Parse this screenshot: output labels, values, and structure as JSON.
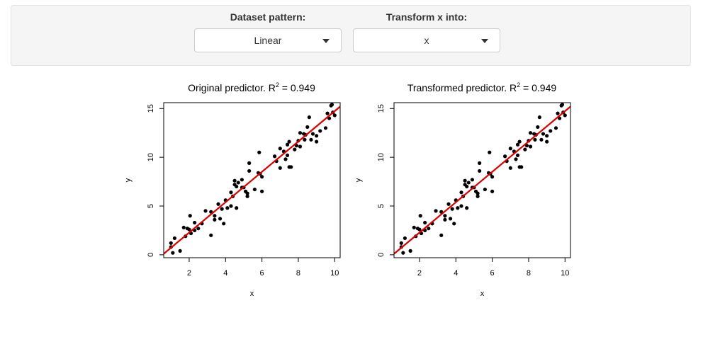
{
  "controls": {
    "dataset": {
      "label": "Dataset pattern:",
      "value": "Linear"
    },
    "transform": {
      "label": "Transform x into:",
      "value": "x"
    }
  },
  "plots": [
    {
      "title_prefix": "Original predictor. R",
      "title_sup": "2",
      "title_suffix": " = 0.949"
    },
    {
      "title_prefix": "Transformed predictor. R",
      "title_sup": "2",
      "title_suffix": " = 0.949"
    }
  ],
  "chart_data": [
    {
      "type": "scatter",
      "title": "Original predictor. R² = 0.949",
      "xlabel": "x",
      "ylabel": "y",
      "xlim": [
        0.6,
        10.3
      ],
      "ylim": [
        -0.3,
        15.6
      ],
      "xticks": [
        2,
        4,
        6,
        8,
        10
      ],
      "yticks": [
        0,
        5,
        10,
        15
      ],
      "grid": false,
      "fit_line": {
        "x": [
          0.6,
          10.3
        ],
        "y": [
          0.1,
          15.2
        ],
        "color": "#dd0000"
      },
      "points": [
        [
          1.0,
          1.2
        ],
        [
          1.0,
          0.8
        ],
        [
          1.1,
          0.2
        ],
        [
          1.2,
          1.7
        ],
        [
          1.5,
          0.4
        ],
        [
          1.7,
          2.8
        ],
        [
          1.8,
          1.9
        ],
        [
          1.9,
          2.7
        ],
        [
          2.0,
          2.6
        ],
        [
          2.05,
          4.0
        ],
        [
          2.1,
          2.2
        ],
        [
          2.3,
          2.5
        ],
        [
          2.3,
          3.3
        ],
        [
          2.5,
          2.7
        ],
        [
          2.7,
          3.2
        ],
        [
          2.9,
          4.5
        ],
        [
          3.2,
          4.4
        ],
        [
          3.2,
          2.0
        ],
        [
          3.4,
          4.0
        ],
        [
          3.4,
          3.6
        ],
        [
          3.6,
          5.2
        ],
        [
          3.7,
          3.7
        ],
        [
          3.8,
          4.7
        ],
        [
          3.9,
          3.2
        ],
        [
          4.0,
          5.6
        ],
        [
          4.1,
          4.8
        ],
        [
          4.3,
          6.4
        ],
        [
          4.3,
          5.0
        ],
        [
          4.4,
          6.0
        ],
        [
          4.5,
          7.2
        ],
        [
          4.5,
          7.6
        ],
        [
          4.6,
          7.0
        ],
        [
          4.6,
          4.8
        ],
        [
          4.7,
          7.4
        ],
        [
          4.9,
          7.7
        ],
        [
          4.9,
          6.9
        ],
        [
          5.0,
          6.9
        ],
        [
          5.1,
          6.5
        ],
        [
          5.2,
          6.3
        ],
        [
          5.3,
          9.4
        ],
        [
          5.3,
          8.6
        ],
        [
          5.2,
          6.0
        ],
        [
          5.6,
          6.7
        ],
        [
          5.8,
          8.4
        ],
        [
          5.85,
          10.5
        ],
        [
          5.9,
          8.3
        ],
        [
          6.0,
          6.5
        ],
        [
          6.0,
          8.0
        ],
        [
          6.7,
          10.1
        ],
        [
          6.8,
          9.6
        ],
        [
          7.0,
          10.9
        ],
        [
          7.0,
          8.9
        ],
        [
          7.2,
          10.6
        ],
        [
          7.3,
          9.8
        ],
        [
          7.4,
          10.2
        ],
        [
          7.4,
          11.3
        ],
        [
          7.5,
          11.6
        ],
        [
          7.5,
          9.0
        ],
        [
          7.6,
          9.0
        ],
        [
          7.8,
          10.8
        ],
        [
          7.9,
          11.2
        ],
        [
          8.0,
          11.7
        ],
        [
          8.1,
          11.1
        ],
        [
          8.1,
          12.5
        ],
        [
          8.3,
          12.4
        ],
        [
          8.35,
          11.8
        ],
        [
          8.4,
          12.3
        ],
        [
          8.5,
          13.1
        ],
        [
          8.6,
          14.1
        ],
        [
          8.7,
          11.8
        ],
        [
          8.8,
          12.4
        ],
        [
          9.0,
          12.2
        ],
        [
          9.0,
          11.6
        ],
        [
          9.2,
          12.7
        ],
        [
          9.5,
          13.0
        ],
        [
          9.6,
          14.5
        ],
        [
          9.7,
          14.0
        ],
        [
          9.8,
          15.3
        ],
        [
          9.85,
          15.4
        ],
        [
          9.9,
          14.6
        ],
        [
          10.0,
          14.3
        ]
      ]
    },
    {
      "type": "scatter",
      "title": "Transformed predictor. R² = 0.949",
      "xlabel": "x",
      "ylabel": "y",
      "xlim": [
        0.6,
        10.3
      ],
      "ylim": [
        -0.3,
        15.6
      ],
      "xticks": [
        2,
        4,
        6,
        8,
        10
      ],
      "yticks": [
        0,
        5,
        10,
        15
      ],
      "grid": false,
      "fit_line": {
        "x": [
          0.6,
          10.3
        ],
        "y": [
          0.1,
          15.2
        ],
        "color": "#dd0000"
      },
      "points": [
        [
          1.0,
          1.2
        ],
        [
          1.0,
          0.8
        ],
        [
          1.1,
          0.2
        ],
        [
          1.2,
          1.7
        ],
        [
          1.5,
          0.4
        ],
        [
          1.7,
          2.8
        ],
        [
          1.8,
          1.9
        ],
        [
          1.9,
          2.7
        ],
        [
          2.0,
          2.6
        ],
        [
          2.05,
          4.0
        ],
        [
          2.1,
          2.2
        ],
        [
          2.3,
          2.5
        ],
        [
          2.3,
          3.3
        ],
        [
          2.5,
          2.7
        ],
        [
          2.7,
          3.2
        ],
        [
          2.9,
          4.5
        ],
        [
          3.2,
          4.4
        ],
        [
          3.2,
          2.0
        ],
        [
          3.4,
          4.0
        ],
        [
          3.4,
          3.6
        ],
        [
          3.6,
          5.2
        ],
        [
          3.7,
          3.7
        ],
        [
          3.8,
          4.7
        ],
        [
          3.9,
          3.2
        ],
        [
          4.0,
          5.6
        ],
        [
          4.1,
          4.8
        ],
        [
          4.3,
          6.4
        ],
        [
          4.3,
          5.0
        ],
        [
          4.4,
          6.0
        ],
        [
          4.5,
          7.2
        ],
        [
          4.5,
          7.6
        ],
        [
          4.6,
          7.0
        ],
        [
          4.6,
          4.8
        ],
        [
          4.7,
          7.4
        ],
        [
          4.9,
          7.7
        ],
        [
          4.9,
          6.9
        ],
        [
          5.0,
          6.9
        ],
        [
          5.1,
          6.5
        ],
        [
          5.2,
          6.3
        ],
        [
          5.3,
          9.4
        ],
        [
          5.3,
          8.6
        ],
        [
          5.2,
          6.0
        ],
        [
          5.6,
          6.7
        ],
        [
          5.8,
          8.4
        ],
        [
          5.85,
          10.5
        ],
        [
          5.9,
          8.3
        ],
        [
          6.0,
          6.5
        ],
        [
          6.0,
          8.0
        ],
        [
          6.7,
          10.1
        ],
        [
          6.8,
          9.6
        ],
        [
          7.0,
          10.9
        ],
        [
          7.0,
          8.9
        ],
        [
          7.2,
          10.6
        ],
        [
          7.3,
          9.8
        ],
        [
          7.4,
          10.2
        ],
        [
          7.4,
          11.3
        ],
        [
          7.5,
          11.6
        ],
        [
          7.5,
          9.0
        ],
        [
          7.6,
          9.0
        ],
        [
          7.8,
          10.8
        ],
        [
          7.9,
          11.2
        ],
        [
          8.0,
          11.7
        ],
        [
          8.1,
          11.1
        ],
        [
          8.1,
          12.5
        ],
        [
          8.3,
          12.4
        ],
        [
          8.35,
          11.8
        ],
        [
          8.4,
          12.3
        ],
        [
          8.5,
          13.1
        ],
        [
          8.6,
          14.1
        ],
        [
          8.7,
          11.8
        ],
        [
          8.8,
          12.4
        ],
        [
          9.0,
          12.2
        ],
        [
          9.0,
          11.6
        ],
        [
          9.2,
          12.7
        ],
        [
          9.5,
          13.0
        ],
        [
          9.6,
          14.5
        ],
        [
          9.7,
          14.0
        ],
        [
          9.8,
          15.3
        ],
        [
          9.85,
          15.4
        ],
        [
          9.9,
          14.6
        ],
        [
          10.0,
          14.3
        ]
      ]
    }
  ]
}
